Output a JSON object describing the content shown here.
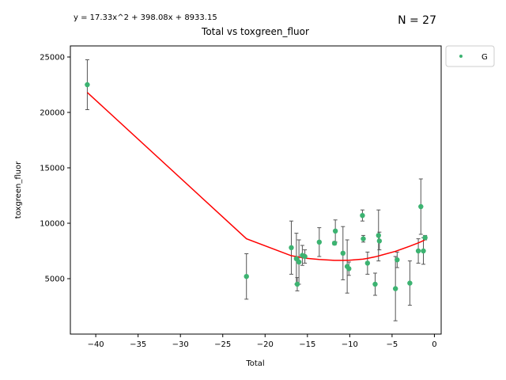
{
  "chart_data": {
    "type": "scatter",
    "title": "Total vs toxgreen_fluor",
    "xlabel": "Total",
    "ylabel": "toxgreen_fluor",
    "equation": "y = 17.33x^2 + 398.08x + 8933.15",
    "n_label": "N = 27",
    "xlim": [
      -43,
      0.8
    ],
    "ylim": [
      0,
      26000
    ],
    "xticks": [
      -40,
      -35,
      -30,
      -25,
      -20,
      -15,
      -10,
      -5,
      0
    ],
    "yticks": [
      5000,
      10000,
      15000,
      20000,
      25000
    ],
    "grid": false,
    "legend_position": "outside-top-right",
    "colors": {
      "points": "#3cb371",
      "fit": "#ff0000",
      "errorbar": "#555555"
    },
    "series": [
      {
        "name": "G",
        "points": [
          {
            "x": -41.0,
            "y": 22500,
            "err": 2250
          },
          {
            "x": -22.2,
            "y": 5200,
            "err": 2050
          },
          {
            "x": -16.9,
            "y": 7800,
            "err": 2400
          },
          {
            "x": -16.3,
            "y": 6800,
            "err": 2300
          },
          {
            "x": -16.2,
            "y": 4500,
            "err": 600
          },
          {
            "x": -16.0,
            "y": 6500,
            "err": 2000
          },
          {
            "x": -15.6,
            "y": 7100,
            "err": 900
          },
          {
            "x": -15.3,
            "y": 7000,
            "err": 600
          },
          {
            "x": -13.6,
            "y": 8300,
            "err": 1300
          },
          {
            "x": -11.8,
            "y": 8200,
            "err": 150
          },
          {
            "x": -11.7,
            "y": 9300,
            "err": 1000
          },
          {
            "x": -10.8,
            "y": 7300,
            "err": 2400
          },
          {
            "x": -10.3,
            "y": 6100,
            "err": 2400
          },
          {
            "x": -10.1,
            "y": 5900,
            "err": 600
          },
          {
            "x": -8.5,
            "y": 10700,
            "err": 500
          },
          {
            "x": -8.4,
            "y": 8600,
            "err": 300
          },
          {
            "x": -7.9,
            "y": 6400,
            "err": 1000
          },
          {
            "x": -7.0,
            "y": 4500,
            "err": 1000
          },
          {
            "x": -6.6,
            "y": 8900,
            "err": 2300
          },
          {
            "x": -6.5,
            "y": 8400,
            "err": 800
          },
          {
            "x": -4.6,
            "y": 4100,
            "err": 2900
          },
          {
            "x": -4.4,
            "y": 6700,
            "err": 700
          },
          {
            "x": -2.9,
            "y": 4600,
            "err": 2000
          },
          {
            "x": -1.9,
            "y": 7500,
            "err": 1100
          },
          {
            "x": -1.6,
            "y": 11500,
            "err": 2500
          },
          {
            "x": -1.3,
            "y": 7500,
            "err": 1200
          },
          {
            "x": -1.1,
            "y": 8700,
            "err": 200
          }
        ]
      }
    ],
    "fit_line": {
      "x": [
        -41.0,
        -22.2,
        -16.9,
        -16.3,
        -16.2,
        -16.0,
        -15.6,
        -15.3,
        -13.6,
        -11.8,
        -11.7,
        -10.8,
        -10.3,
        -10.1,
        -8.5,
        -8.4,
        -7.9,
        -7.0,
        -6.6,
        -6.5,
        -4.6,
        -4.4,
        -2.9,
        -1.9,
        -1.6,
        -1.3,
        -1.1
      ],
      "y": [
        21800,
        8600,
        7070,
        6990,
        6980,
        6950,
        6890,
        6850,
        6730,
        6650,
        6650,
        6650,
        6660,
        6660,
        6760,
        6770,
        6830,
        6970,
        7050,
        7070,
        7470,
        7520,
        7930,
        8230,
        8330,
        8430,
        8500
      ]
    }
  }
}
